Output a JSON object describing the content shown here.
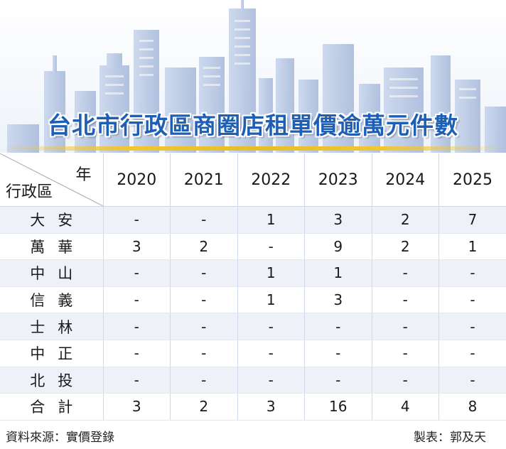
{
  "title": "台北市行政區商圈店租單價逾萬元件數",
  "header": {
    "corner_top": "年",
    "corner_bottom": "行政區",
    "years": [
      "2020",
      "2021",
      "2022",
      "2023",
      "2024",
      "2025"
    ]
  },
  "rows": [
    {
      "district": "大安",
      "values": [
        "-",
        "-",
        "1",
        "3",
        "2",
        "7"
      ]
    },
    {
      "district": "萬華",
      "values": [
        "3",
        "2",
        "-",
        "9",
        "2",
        "1"
      ]
    },
    {
      "district": "中山",
      "values": [
        "-",
        "-",
        "1",
        "1",
        "-",
        "-"
      ]
    },
    {
      "district": "信義",
      "values": [
        "-",
        "-",
        "1",
        "3",
        "-",
        "-"
      ]
    },
    {
      "district": "士林",
      "values": [
        "-",
        "-",
        "-",
        "-",
        "-",
        "-"
      ]
    },
    {
      "district": "中正",
      "values": [
        "-",
        "-",
        "-",
        "-",
        "-",
        "-"
      ]
    },
    {
      "district": "北投",
      "values": [
        "-",
        "-",
        "-",
        "-",
        "-",
        "-"
      ]
    },
    {
      "district": "合計",
      "values": [
        "3",
        "2",
        "3",
        "16",
        "4",
        "8"
      ]
    }
  ],
  "footer": {
    "source": "資料來源：實價登錄",
    "credit": "製表：郭及天"
  },
  "colors": {
    "title": "#1f5fb3",
    "accent_line": "#f0c632",
    "row_alt": "#eef2f8",
    "skyline": "#b9c8e4"
  },
  "chart_data": {
    "type": "table",
    "title": "台北市行政區商圈店租單價逾萬元件數",
    "column_header": "年",
    "row_header": "行政區",
    "columns": [
      "2020",
      "2021",
      "2022",
      "2023",
      "2024",
      "2025"
    ],
    "rows": [
      "大安",
      "萬華",
      "中山",
      "信義",
      "士林",
      "中正",
      "北投",
      "合計"
    ],
    "values": [
      [
        null,
        null,
        1,
        3,
        2,
        7
      ],
      [
        3,
        2,
        null,
        9,
        2,
        1
      ],
      [
        null,
        null,
        1,
        1,
        null,
        null
      ],
      [
        null,
        null,
        1,
        3,
        null,
        null
      ],
      [
        null,
        null,
        null,
        null,
        null,
        null
      ],
      [
        null,
        null,
        null,
        null,
        null,
        null
      ],
      [
        null,
        null,
        null,
        null,
        null,
        null
      ],
      [
        3,
        2,
        3,
        16,
        4,
        8
      ]
    ]
  }
}
